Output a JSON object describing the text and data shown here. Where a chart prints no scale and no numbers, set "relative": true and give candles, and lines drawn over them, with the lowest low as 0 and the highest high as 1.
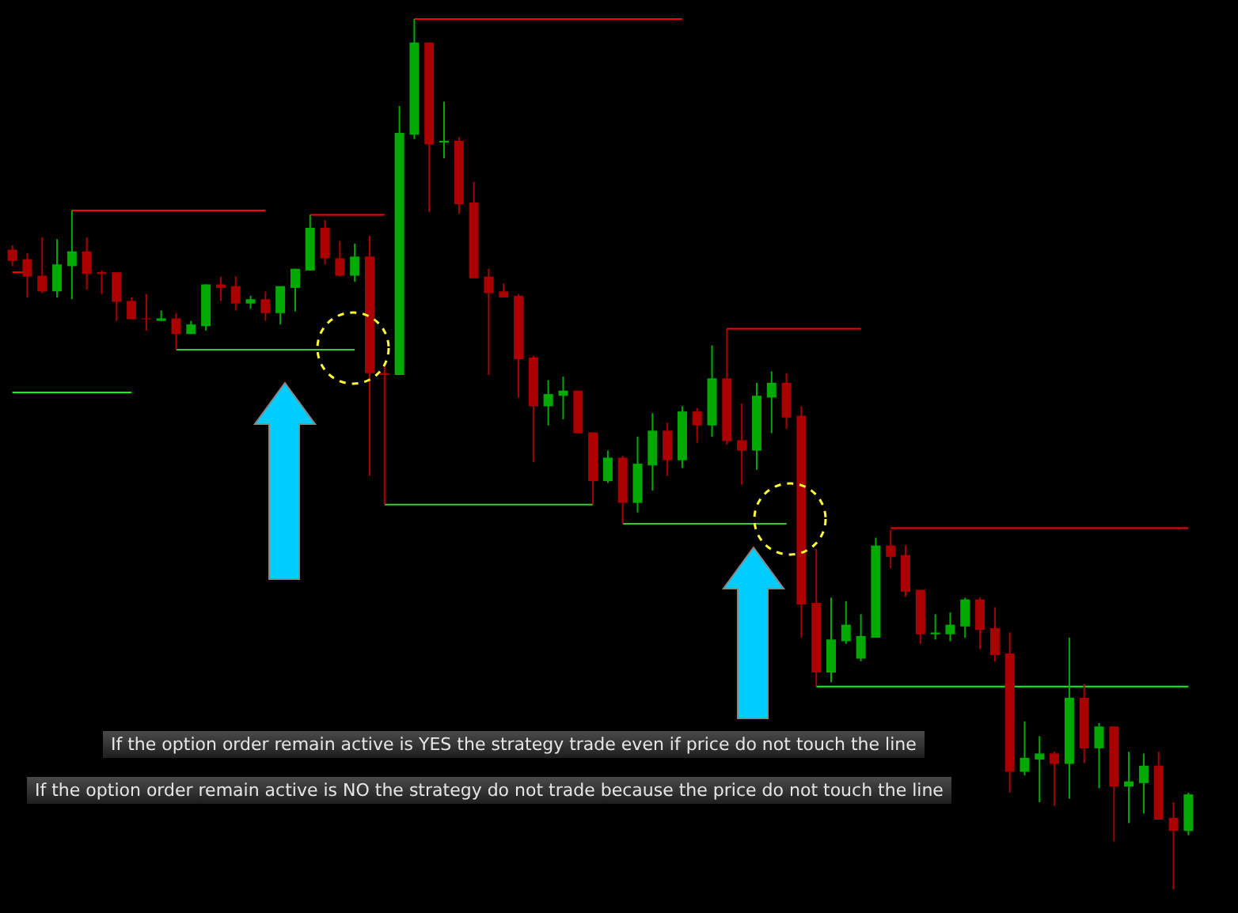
{
  "chart_data": {
    "type": "candlestick",
    "relative": true,
    "categories": [
      null,
      null,
      null,
      null,
      null,
      null,
      null,
      null,
      null,
      null,
      null,
      null,
      null,
      null,
      null,
      null,
      null,
      null,
      null,
      null,
      null,
      null,
      null,
      null,
      null,
      null,
      null,
      null,
      null,
      null,
      null,
      null,
      null,
      null,
      null,
      null,
      null,
      null,
      null,
      null,
      null,
      null,
      null,
      null,
      null,
      null,
      null,
      null,
      null,
      null,
      null,
      null,
      null,
      null,
      null,
      null,
      null,
      null,
      null,
      null,
      null,
      null,
      null,
      null,
      null,
      null,
      null,
      null,
      null,
      null,
      null,
      null,
      null,
      null,
      null,
      null,
      null,
      null,
      null,
      null
    ],
    "ohlc": [
      [
        0.735,
        0.74,
        0.716,
        0.722
      ],
      [
        0.724,
        0.731,
        0.68,
        0.704
      ],
      [
        0.705,
        0.749,
        0.685,
        0.687
      ],
      [
        0.687,
        0.747,
        0.68,
        0.718
      ],
      [
        0.716,
        0.78,
        0.678,
        0.733
      ],
      [
        0.733,
        0.749,
        0.689,
        0.707
      ],
      [
        0.709,
        0.711,
        0.684,
        0.707
      ],
      [
        0.709,
        0.709,
        0.653,
        0.675
      ],
      [
        0.676,
        0.68,
        0.655,
        0.655
      ],
      [
        0.656,
        0.684,
        0.642,
        0.655
      ],
      [
        0.653,
        0.665,
        0.653,
        0.656
      ],
      [
        0.656,
        0.662,
        0.62,
        0.638
      ],
      [
        0.638,
        0.653,
        0.638,
        0.649
      ],
      [
        0.647,
        0.695,
        0.642,
        0.695
      ],
      [
        0.695,
        0.704,
        0.676,
        0.691
      ],
      [
        0.693,
        0.704,
        0.665,
        0.673
      ],
      [
        0.673,
        0.682,
        0.667,
        0.678
      ],
      [
        0.678,
        0.687,
        0.653,
        0.662
      ],
      [
        0.662,
        0.693,
        0.649,
        0.693
      ],
      [
        0.691,
        0.713,
        0.664,
        0.713
      ],
      [
        0.711,
        0.775,
        0.711,
        0.76
      ],
      [
        0.76,
        0.769,
        0.718,
        0.725
      ],
      [
        0.725,
        0.745,
        0.704,
        0.705
      ],
      [
        0.705,
        0.742,
        0.698,
        0.727
      ],
      [
        0.727,
        0.751,
        0.475,
        0.593
      ],
      [
        0.593,
        0.604,
        0.442,
        0.591
      ],
      [
        0.591,
        0.9,
        0.591,
        0.869
      ],
      [
        0.867,
        1,
        0.862,
        0.973
      ],
      [
        0.973,
        0.973,
        0.778,
        0.856
      ],
      [
        0.858,
        0.905,
        0.84,
        0.86
      ],
      [
        0.86,
        0.864,
        0.776,
        0.787
      ],
      [
        0.789,
        0.813,
        0.702,
        0.702
      ],
      [
        0.704,
        0.713,
        0.591,
        0.685
      ],
      [
        0.687,
        0.696,
        0.68,
        0.68
      ],
      [
        0.682,
        0.684,
        0.565,
        0.609
      ],
      [
        0.611,
        0.613,
        0.491,
        0.555
      ],
      [
        0.555,
        0.585,
        0.533,
        0.569
      ],
      [
        0.567,
        0.589,
        0.54,
        0.573
      ],
      [
        0.573,
        0.573,
        0.524,
        0.524
      ],
      [
        0.525,
        0.525,
        0.442,
        0.469
      ],
      [
        0.469,
        0.504,
        0.467,
        0.496
      ],
      [
        0.496,
        0.498,
        0.42,
        0.444
      ],
      [
        0.444,
        0.52,
        0.433,
        0.489
      ],
      [
        0.487,
        0.547,
        0.458,
        0.527
      ],
      [
        0.527,
        0.536,
        0.475,
        0.493
      ],
      [
        0.493,
        0.555,
        0.484,
        0.549
      ],
      [
        0.549,
        0.553,
        0.513,
        0.533
      ],
      [
        0.533,
        0.625,
        0.52,
        0.587
      ],
      [
        0.587,
        0.644,
        0.511,
        0.515
      ],
      [
        0.516,
        0.558,
        0.465,
        0.504
      ],
      [
        0.504,
        0.582,
        0.482,
        0.567
      ],
      [
        0.565,
        0.595,
        0.524,
        0.582
      ],
      [
        0.582,
        0.593,
        0.529,
        0.542
      ],
      [
        0.544,
        0.555,
        0.289,
        0.327
      ],
      [
        0.329,
        0.391,
        0.233,
        0.249
      ],
      [
        0.249,
        0.335,
        0.238,
        0.287
      ],
      [
        0.285,
        0.331,
        0.282,
        0.304
      ],
      [
        0.265,
        0.316,
        0.262,
        0.291
      ],
      [
        0.289,
        0.404,
        0.289,
        0.395
      ],
      [
        0.395,
        0.413,
        0.369,
        0.382
      ],
      [
        0.384,
        0.395,
        0.336,
        0.342
      ],
      [
        0.344,
        0.344,
        0.282,
        0.293
      ],
      [
        0.293,
        0.316,
        0.287,
        0.295
      ],
      [
        0.293,
        0.318,
        0.285,
        0.304
      ],
      [
        0.302,
        0.335,
        0.289,
        0.333
      ],
      [
        0.333,
        0.335,
        0.276,
        0.298
      ],
      [
        0.3,
        0.324,
        0.262,
        0.269
      ],
      [
        0.271,
        0.295,
        0.111,
        0.135
      ],
      [
        0.135,
        0.193,
        0.131,
        0.151
      ],
      [
        0.149,
        0.176,
        0.1,
        0.156
      ],
      [
        0.156,
        0.158,
        0.096,
        0.144
      ],
      [
        0.144,
        0.289,
        0.104,
        0.22
      ],
      [
        0.22,
        0.236,
        0.145,
        0.162
      ],
      [
        0.162,
        0.191,
        0.116,
        0.187
      ],
      [
        0.187,
        0.187,
        0.055,
        0.118
      ],
      [
        0.118,
        0.158,
        0.076,
        0.124
      ],
      [
        0.122,
        0.156,
        0.087,
        0.142
      ],
      [
        0.142,
        0.158,
        0.08,
        0.08
      ],
      [
        0.082,
        0.1,
        0,
        0.067
      ],
      [
        0.067,
        0.111,
        0.062,
        0.109
      ]
    ],
    "colors": [
      "#aa0000",
      "#aa0000",
      "#aa0000",
      "#00aa00",
      "#00aa00",
      "#aa0000",
      "#aa0000",
      "#aa0000",
      "#aa0000",
      "#aa0000",
      "#00aa00",
      "#aa0000",
      "#00aa00",
      "#00aa00",
      "#aa0000",
      "#aa0000",
      "#00aa00",
      "#aa0000",
      "#00aa00",
      "#00aa00",
      "#00aa00",
      "#aa0000",
      "#aa0000",
      "#00aa00",
      "#aa0000",
      "#aa0000",
      "#00aa00",
      "#00aa00",
      "#aa0000",
      "#00aa00",
      "#aa0000",
      "#aa0000",
      "#aa0000",
      "#aa0000",
      "#aa0000",
      "#aa0000",
      "#00aa00",
      "#00aa00",
      "#aa0000",
      "#aa0000",
      "#00aa00",
      "#aa0000",
      "#00aa00",
      "#00aa00",
      "#aa0000",
      "#00aa00",
      "#aa0000",
      "#00aa00",
      "#aa0000",
      "#aa0000",
      "#00aa00",
      "#00aa00",
      "#aa0000",
      "#aa0000",
      "#aa0000",
      "#00aa00",
      "#00aa00",
      "#00aa00",
      "#00aa00",
      "#aa0000",
      "#aa0000",
      "#aa0000",
      "#00aa00",
      "#00aa00",
      "#00aa00",
      "#aa0000",
      "#aa0000",
      "#aa0000",
      "#00aa00",
      "#00aa00",
      "#aa0000",
      "#00aa00",
      "#aa0000",
      "#00aa00",
      "#aa0000",
      "#00aa00",
      "#00aa00",
      "#aa0000",
      "#aa0000",
      "#00aa00"
    ],
    "series": [
      {
        "type": "line",
        "color": "#ff0000",
        "values": [
          0.709,
          0.709,
          null,
          null,
          null,
          null,
          null,
          null,
          null,
          null,
          null,
          null,
          null,
          null,
          null,
          null,
          null,
          null,
          null,
          null,
          null,
          null,
          null,
          null,
          null,
          null,
          null,
          null,
          null,
          null,
          null,
          null,
          null,
          null,
          null,
          null,
          null,
          null,
          null,
          null,
          null,
          null,
          null,
          null,
          null,
          null,
          null,
          null,
          null,
          null,
          null,
          null,
          null,
          null,
          null,
          null,
          null,
          null,
          null,
          null,
          null,
          null,
          null,
          null,
          null,
          null,
          null,
          null,
          null,
          null,
          null,
          null,
          null,
          null,
          null,
          null,
          null,
          null,
          null,
          null
        ]
      },
      {
        "type": "line",
        "color": "#ff0000",
        "values": [
          null,
          null,
          null,
          null,
          0.78,
          0.78,
          0.78,
          0.78,
          0.78,
          0.78,
          0.78,
          0.78,
          0.78,
          0.78,
          0.78,
          0.78,
          0.78,
          0.78,
          null,
          null,
          null,
          null,
          null,
          null,
          null,
          null,
          null,
          null,
          null,
          null,
          null,
          null,
          null,
          null,
          null,
          null,
          null,
          null,
          null,
          null,
          null,
          null,
          null,
          null,
          null,
          null,
          null,
          null,
          null,
          null,
          null,
          null,
          null,
          null,
          null,
          null,
          null,
          null,
          null,
          null,
          null,
          null,
          null,
          null,
          null,
          null,
          null,
          null,
          null,
          null,
          null,
          null,
          null,
          null,
          null,
          null,
          null,
          null,
          null,
          null
        ]
      },
      {
        "type": "line",
        "color": "#ff0000",
        "values": [
          null,
          null,
          null,
          null,
          null,
          null,
          null,
          null,
          null,
          null,
          null,
          null,
          null,
          null,
          null,
          null,
          null,
          null,
          null,
          null,
          0.775,
          0.775,
          0.775,
          0.775,
          0.775,
          0.775,
          null,
          null,
          null,
          null,
          null,
          null,
          null,
          null,
          null,
          null,
          null,
          null,
          null,
          null,
          null,
          null,
          null,
          null,
          null,
          null,
          null,
          null,
          null,
          null,
          null,
          null,
          null,
          null,
          null,
          null,
          null,
          null,
          null,
          null,
          null,
          null,
          null,
          null,
          null,
          null,
          null,
          null,
          null,
          null,
          null,
          null,
          null,
          null,
          null,
          null,
          null,
          null,
          null,
          null
        ]
      },
      {
        "type": "line",
        "color": "#ff0000",
        "values": [
          null,
          null,
          null,
          null,
          null,
          null,
          null,
          null,
          null,
          null,
          null,
          null,
          null,
          null,
          null,
          null,
          null,
          null,
          null,
          null,
          null,
          null,
          null,
          null,
          null,
          null,
          null,
          1,
          1,
          1,
          1,
          1,
          1,
          1,
          1,
          1,
          1,
          1,
          1,
          1,
          1,
          1,
          1,
          1,
          1,
          1,
          null,
          null,
          null,
          null,
          null,
          null,
          null,
          null,
          null,
          null,
          null,
          null,
          null,
          null,
          null,
          null,
          null,
          null,
          null,
          null,
          null,
          null,
          null,
          null,
          null,
          null,
          null,
          null,
          null,
          null,
          null,
          null,
          null,
          null
        ]
      },
      {
        "type": "line",
        "color": "#ff0000",
        "values": [
          null,
          null,
          null,
          null,
          null,
          null,
          null,
          null,
          null,
          null,
          null,
          null,
          null,
          null,
          null,
          null,
          null,
          null,
          null,
          null,
          null,
          null,
          null,
          null,
          null,
          null,
          null,
          null,
          null,
          null,
          null,
          null,
          null,
          null,
          null,
          null,
          null,
          null,
          null,
          null,
          null,
          null,
          null,
          null,
          null,
          null,
          null,
          null,
          0.644,
          0.644,
          0.644,
          0.644,
          0.644,
          0.644,
          0.644,
          0.644,
          0.644,
          0.644,
          null,
          null,
          null,
          null,
          null,
          null,
          null,
          null,
          null,
          null,
          null,
          null,
          null,
          null,
          null,
          null,
          null,
          null,
          null,
          null,
          null,
          null
        ]
      },
      {
        "type": "line",
        "color": "#ff0000",
        "values": [
          null,
          null,
          null,
          null,
          null,
          null,
          null,
          null,
          null,
          null,
          null,
          null,
          null,
          null,
          null,
          null,
          null,
          null,
          null,
          null,
          null,
          null,
          null,
          null,
          null,
          null,
          null,
          null,
          null,
          null,
          null,
          null,
          null,
          null,
          null,
          null,
          null,
          null,
          null,
          null,
          null,
          null,
          null,
          null,
          null,
          null,
          null,
          null,
          null,
          null,
          null,
          null,
          null,
          null,
          null,
          null,
          null,
          null,
          null,
          0.415,
          0.415,
          0.415,
          0.415,
          0.415,
          0.415,
          0.415,
          0.415,
          0.415,
          0.415,
          0.415,
          0.415,
          0.415,
          0.415,
          0.415,
          0.415,
          0.415,
          0.415,
          0.415,
          0.415,
          0.415
        ]
      },
      {
        "type": "line",
        "color": "#00ff00",
        "values": [
          0.571,
          0.571,
          0.571,
          0.571,
          0.571,
          0.571,
          0.571,
          0.571,
          0.571,
          null,
          null,
          null,
          null,
          null,
          null,
          null,
          null,
          null,
          null,
          null,
          null,
          null,
          null,
          null,
          null,
          null,
          null,
          null,
          null,
          null,
          null,
          null,
          null,
          null,
          null,
          null,
          null,
          null,
          null,
          null,
          null,
          null,
          null,
          null,
          null,
          null,
          null,
          null,
          null,
          null,
          null,
          null,
          null,
          null,
          null,
          null,
          null,
          null,
          null,
          null,
          null,
          null,
          null,
          null,
          null,
          null,
          null,
          null,
          null,
          null,
          null,
          null,
          null,
          null,
          null,
          null,
          null,
          null,
          null,
          null
        ]
      },
      {
        "type": "line",
        "color": "#33cc33",
        "values": [
          null,
          null,
          null,
          null,
          null,
          null,
          null,
          null,
          null,
          null,
          null,
          0.62,
          0.62,
          0.62,
          0.62,
          0.62,
          0.62,
          0.62,
          0.62,
          0.62,
          0.62,
          0.62,
          0.62,
          0.62,
          null,
          null,
          null,
          null,
          null,
          null,
          null,
          null,
          null,
          null,
          null,
          null,
          null,
          null,
          null,
          null,
          null,
          null,
          null,
          null,
          null,
          null,
          null,
          null,
          null,
          null,
          null,
          null,
          null,
          null,
          null,
          null,
          null,
          null,
          null,
          null,
          null,
          null,
          null,
          null,
          null,
          null,
          null,
          null,
          null,
          null,
          null,
          null,
          null,
          null,
          null,
          null,
          null,
          null,
          null,
          null
        ]
      },
      {
        "type": "line",
        "color": "#33cc33",
        "values": [
          null,
          null,
          null,
          null,
          null,
          null,
          null,
          null,
          null,
          null,
          null,
          null,
          null,
          null,
          null,
          null,
          null,
          null,
          null,
          null,
          null,
          null,
          null,
          null,
          null,
          0.442,
          0.442,
          0.442,
          0.442,
          0.442,
          0.442,
          0.442,
          0.442,
          0.442,
          0.442,
          0.442,
          0.442,
          0.442,
          0.442,
          0.442,
          null,
          null,
          null,
          null,
          null,
          null,
          null,
          null,
          null,
          null,
          null,
          null,
          null,
          null,
          null,
          null,
          null,
          null,
          null,
          null,
          null,
          null,
          null,
          null,
          null,
          null,
          null,
          null,
          null,
          null,
          null,
          null,
          null,
          null,
          null,
          null,
          null,
          null,
          null,
          null
        ]
      },
      {
        "type": "line",
        "color": "#33cc33",
        "values": [
          null,
          null,
          null,
          null,
          null,
          null,
          null,
          null,
          null,
          null,
          null,
          null,
          null,
          null,
          null,
          null,
          null,
          null,
          null,
          null,
          null,
          null,
          null,
          null,
          null,
          null,
          null,
          null,
          null,
          null,
          null,
          null,
          null,
          null,
          null,
          null,
          null,
          null,
          null,
          null,
          null,
          0.42,
          0.42,
          0.42,
          0.42,
          0.42,
          0.42,
          0.42,
          0.42,
          0.42,
          0.42,
          0.42,
          0.42,
          null,
          null,
          null,
          null,
          null,
          null,
          null,
          null,
          null,
          null,
          null,
          null,
          null,
          null,
          null,
          null,
          null,
          null,
          null,
          null,
          null,
          null,
          null,
          null,
          null,
          null,
          null
        ]
      },
      {
        "type": "line",
        "color": "#00ff00",
        "values": [
          null,
          null,
          null,
          null,
          null,
          null,
          null,
          null,
          null,
          null,
          null,
          null,
          null,
          null,
          null,
          null,
          null,
          null,
          null,
          null,
          null,
          null,
          null,
          null,
          null,
          null,
          null,
          null,
          null,
          null,
          null,
          null,
          null,
          null,
          null,
          null,
          null,
          null,
          null,
          null,
          null,
          null,
          null,
          null,
          null,
          null,
          null,
          null,
          null,
          null,
          null,
          null,
          null,
          null,
          0.233,
          0.233,
          0.233,
          0.233,
          0.233,
          0.233,
          0.233,
          0.233,
          0.233,
          0.233,
          0.233,
          0.233,
          0.233,
          0.233,
          0.233,
          0.233,
          0.233,
          0.233,
          0.233,
          0.233,
          0.233,
          0.233,
          0.233,
          0.233,
          0.233,
          0.233
        ]
      }
    ],
    "annotations": [
      "If the option order remain active is YES the strategy trade even if price do not touch the line",
      "If the option order remain active is NO the strategy do not trade because the price do not touch the line"
    ]
  }
}
